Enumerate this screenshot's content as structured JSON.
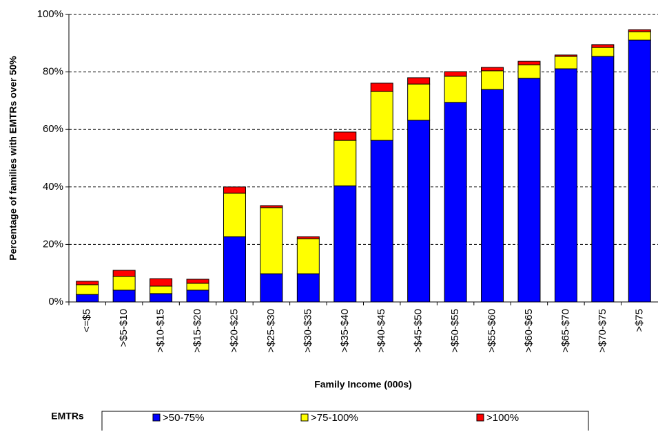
{
  "chart_data": {
    "type": "stacked_bar",
    "y_label": "Percentage of families with EMTRs over 50%",
    "x_label": "Family Income (000s)",
    "legend_title": "EMTRs",
    "categories": [
      "<=$5",
      ">$5-$10",
      ">$10-$15",
      ">$15-$20",
      ">$20-$25",
      ">$25-$30",
      ">$30-$35",
      ">$35-$40",
      ">$40-$45",
      ">$45-$50",
      ">$50-$55",
      ">$55-$60",
      ">$60-$65",
      ">$65-$70",
      ">$70-$75",
      ">$75"
    ],
    "series": [
      {
        "name": ">50-75%",
        "color": "#0000ff",
        "values": [
          2.6,
          4.1,
          2.9,
          4.1,
          22.7,
          9.8,
          9.8,
          40.4,
          56.2,
          63.2,
          69.4,
          73.9,
          77.8,
          81.1,
          85.4,
          91.1
        ]
      },
      {
        "name": ">75-100%",
        "color": "#ffff00",
        "values": [
          3.4,
          4.8,
          2.6,
          2.4,
          15.1,
          23.0,
          12.2,
          15.8,
          17.0,
          12.6,
          9.1,
          6.5,
          4.7,
          4.3,
          3.1,
          2.9
        ]
      },
      {
        "name": ">100%",
        "color": "#ff0000",
        "values": [
          1.2,
          2.1,
          2.6,
          1.4,
          2.2,
          0.7,
          0.7,
          2.9,
          2.9,
          2.2,
          1.6,
          1.2,
          1.2,
          0.5,
          1.0,
          0.7
        ]
      }
    ],
    "ylim": [
      0,
      100
    ],
    "yticks": [
      {
        "value": 0,
        "label": "0%"
      },
      {
        "value": 20,
        "label": "20%"
      },
      {
        "value": 40,
        "label": "40%"
      },
      {
        "value": 60,
        "label": "60%"
      },
      {
        "value": 80,
        "label": "80%"
      },
      {
        "value": 100,
        "label": "100%"
      }
    ],
    "grid": true
  }
}
